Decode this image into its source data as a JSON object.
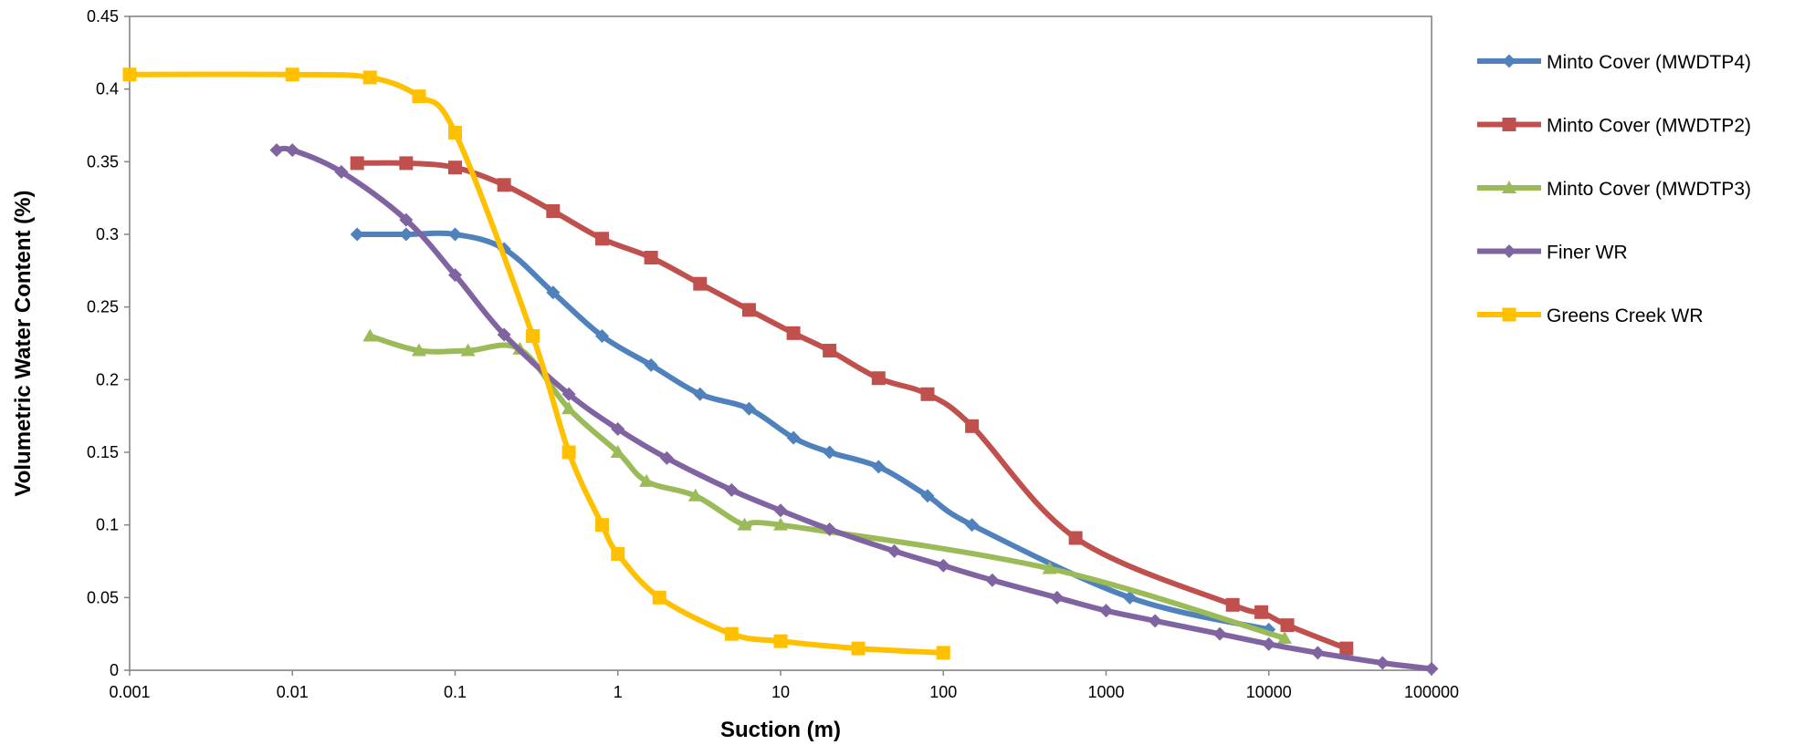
{
  "chart_data": {
    "type": "scatter",
    "title": "",
    "xlabel": "Suction (m)",
    "ylabel": "Volumetric Water Content (%)",
    "xscale": "log",
    "xlim": [
      0.001,
      100000
    ],
    "ylim": [
      0,
      0.45
    ],
    "xticks": [
      0.001,
      0.01,
      0.1,
      1,
      10,
      100,
      1000,
      10000,
      100000
    ],
    "xtick_labels": [
      "0.001",
      "0.01",
      "0.1",
      "1",
      "10",
      "100",
      "1000",
      "10000",
      "100000"
    ],
    "yticks": [
      0,
      0.05,
      0.1,
      0.15,
      0.2,
      0.25,
      0.3,
      0.35,
      0.4,
      0.45
    ],
    "ytick_labels": [
      "0",
      "0.05",
      "0.1",
      "0.15",
      "0.2",
      "0.25",
      "0.3",
      "0.35",
      "0.4",
      "0.45"
    ],
    "grid": true,
    "legend_position": "right",
    "series": [
      {
        "name": "Minto Cover (MWDTP4)",
        "color": "#4F81BD",
        "marker": "diamond",
        "x": [
          0.025,
          0.05,
          0.1,
          0.2,
          0.4,
          0.8,
          1.6,
          3.2,
          6.4,
          12,
          20,
          40,
          80,
          150,
          1400,
          10000
        ],
        "y": [
          0.3,
          0.3,
          0.3,
          0.29,
          0.26,
          0.23,
          0.21,
          0.19,
          0.18,
          0.16,
          0.15,
          0.14,
          0.12,
          0.1,
          0.05,
          0.028
        ]
      },
      {
        "name": "Minto Cover (MWDTP2)",
        "color": "#C0504D",
        "marker": "square",
        "x": [
          0.025,
          0.05,
          0.1,
          0.2,
          0.4,
          0.8,
          1.6,
          3.2,
          6.4,
          12,
          20,
          40,
          80,
          150,
          650,
          6000,
          9000,
          13000,
          30000
        ],
        "y": [
          0.349,
          0.349,
          0.346,
          0.334,
          0.316,
          0.297,
          0.284,
          0.266,
          0.248,
          0.232,
          0.22,
          0.201,
          0.19,
          0.168,
          0.091,
          0.045,
          0.04,
          0.031,
          0.015
        ]
      },
      {
        "name": "Minto Cover (MWDTP3)",
        "color": "#9BBB59",
        "marker": "triangle",
        "x": [
          0.03,
          0.06,
          0.12,
          0.25,
          0.5,
          1,
          1.5,
          3,
          6,
          10,
          450,
          12500
        ],
        "y": [
          0.23,
          0.22,
          0.22,
          0.221,
          0.18,
          0.15,
          0.13,
          0.12,
          0.1,
          0.1,
          0.07,
          0.022
        ]
      },
      {
        "name": "Finer WR",
        "color": "#8064A2",
        "marker": "diamond",
        "x": [
          0.008,
          0.01,
          0.02,
          0.05,
          0.1,
          0.2,
          0.5,
          1,
          2,
          5,
          10,
          20,
          50,
          100,
          200,
          500,
          1000,
          2000,
          5000,
          10000,
          20000,
          50000,
          100000
        ],
        "y": [
          0.358,
          0.358,
          0.343,
          0.31,
          0.272,
          0.231,
          0.19,
          0.166,
          0.146,
          0.124,
          0.11,
          0.097,
          0.082,
          0.072,
          0.062,
          0.05,
          0.041,
          0.034,
          0.025,
          0.018,
          0.012,
          0.005,
          0.001
        ]
      },
      {
        "name": "Greens Creek WR",
        "color": "#FFC000",
        "marker": "square",
        "x": [
          0.001,
          0.01,
          0.03,
          0.06,
          0.1,
          0.3,
          0.5,
          0.8,
          1,
          1.8,
          5,
          10,
          30,
          100
        ],
        "y": [
          0.41,
          0.41,
          0.408,
          0.395,
          0.37,
          0.23,
          0.15,
          0.1,
          0.08,
          0.05,
          0.025,
          0.02,
          0.015,
          0.012
        ]
      }
    ]
  }
}
